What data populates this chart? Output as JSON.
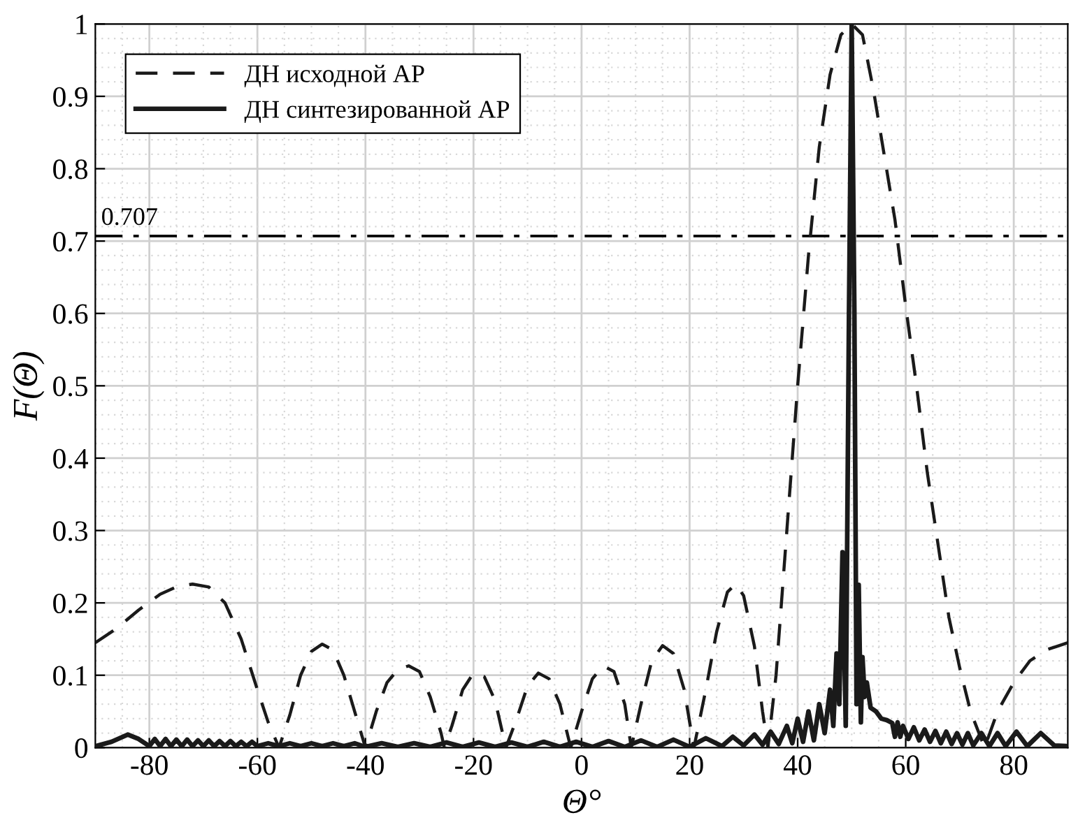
{
  "chart_data": {
    "type": "line",
    "xlabel": "Θ°",
    "ylabel": "F(Θ)",
    "xlim": [
      -90,
      90
    ],
    "xticks": [
      {
        "value": -80,
        "label": "-80"
      },
      {
        "value": -60,
        "label": "-60"
      },
      {
        "value": -40,
        "label": "-40"
      },
      {
        "value": -20,
        "label": "-20"
      },
      0,
      20,
      40,
      60,
      80
    ],
    "ylim": [
      0,
      1
    ],
    "yticks": [
      0,
      0.1,
      0.2,
      0.3,
      0.4,
      0.5,
      0.6,
      0.7,
      0.8,
      0.9,
      1
    ],
    "grid": true,
    "legend": "top left",
    "marker": "none",
    "ref_lines": [
      {
        "axis": "y",
        "value": 0.707,
        "label": "0.707",
        "color": "#000000",
        "line_style": "dashdot"
      }
    ],
    "series": [
      {
        "name": "ДН исходной АР",
        "color": "#1a1a1a",
        "line_style": "dashed",
        "x": [
          -90,
          -86,
          -82,
          -78,
          -75,
          -72,
          -69,
          -66,
          -63,
          -60,
          -58,
          -56,
          -54,
          -52,
          -50,
          -48,
          -46,
          -44,
          -42,
          -40,
          -38,
          -36,
          -34,
          -32,
          -30,
          -28,
          -26,
          -25.4,
          -24,
          -22,
          -20,
          -18,
          -16,
          -14,
          -12,
          -10,
          -8,
          -6,
          -4,
          -2,
          0,
          2,
          4,
          6,
          8,
          9.2,
          11,
          13,
          15,
          17,
          19,
          20.8,
          23,
          25,
          27,
          28.5,
          30,
          32,
          33.5,
          34.5,
          36,
          38,
          40,
          42,
          44,
          46,
          48,
          50,
          52,
          54,
          56,
          58,
          60,
          62,
          64,
          66,
          68,
          70,
          72,
          74.6,
          77,
          80,
          83,
          86,
          88,
          90
        ],
        "values": [
          0.145,
          0.165,
          0.19,
          0.212,
          0.222,
          0.226,
          0.222,
          0.2,
          0.15,
          0.08,
          0.035,
          0,
          0.045,
          0.1,
          0.133,
          0.143,
          0.135,
          0.1,
          0.05,
          0,
          0.05,
          0.09,
          0.108,
          0.113,
          0.105,
          0.07,
          0.02,
          0,
          0.03,
          0.08,
          0.103,
          0.098,
          0.065,
          0,
          0.04,
          0.085,
          0.103,
          0.095,
          0.06,
          0,
          0.05,
          0.095,
          0.113,
          0.105,
          0.06,
          0,
          0.06,
          0.12,
          0.141,
          0.13,
          0.08,
          0,
          0.08,
          0.16,
          0.215,
          0.226,
          0.21,
          0.14,
          0.05,
          0,
          0.1,
          0.3,
          0.5,
          0.68,
          0.83,
          0.93,
          0.985,
          1.0,
          0.985,
          0.91,
          0.82,
          0.73,
          0.61,
          0.5,
          0.38,
          0.28,
          0.18,
          0.11,
          0.05,
          0,
          0.05,
          0.09,
          0.12,
          0.135,
          0.14,
          0.145
        ]
      },
      {
        "name": "ДН синтезированной АР",
        "color": "#1a1a1a",
        "line_style": "solid",
        "x": [
          -90,
          -87,
          -84,
          -82,
          -80,
          -79,
          -78,
          -77,
          -76,
          -75,
          -74,
          -73,
          -72,
          -71,
          -70,
          -69,
          -68,
          -67,
          -66,
          -65,
          -64,
          -63,
          -62,
          -61,
          -60,
          -58,
          -56,
          -54,
          -52,
          -50,
          -48,
          -46,
          -44,
          -42,
          -40,
          -37,
          -34,
          -31,
          -28,
          -25,
          -22,
          -19,
          -16,
          -13,
          -10,
          -7,
          -4,
          -1,
          2,
          5,
          8,
          11,
          14,
          17,
          20,
          23,
          26,
          28,
          30,
          32,
          33.5,
          35,
          36.5,
          38,
          39,
          40,
          41,
          42,
          43,
          44,
          45,
          46,
          46.6,
          47.2,
          47.7,
          48.3,
          48.9,
          49.5,
          50,
          50.5,
          50.9,
          51.3,
          51.7,
          52,
          52.4,
          52.8,
          53.5,
          54.5,
          55.5,
          56.5,
          57.5,
          58,
          58.5,
          59,
          59.5,
          60.5,
          61.5,
          62.5,
          63.5,
          64.5,
          65.5,
          66.5,
          67.5,
          68.5,
          69.5,
          70.5,
          71.5,
          72.5,
          74,
          75.5,
          77,
          78.5,
          80.5,
          82.5,
          85,
          87.5,
          90
        ],
        "values": [
          0.002,
          0.008,
          0.018,
          0.012,
          0.002,
          0.012,
          0.002,
          0.012,
          0.002,
          0.011,
          0.002,
          0.011,
          0.002,
          0.01,
          0.002,
          0.01,
          0.002,
          0.009,
          0.002,
          0.009,
          0.002,
          0.008,
          0.002,
          0.008,
          0.002,
          0.006,
          0.002,
          0.006,
          0.002,
          0.006,
          0.002,
          0.006,
          0.002,
          0.006,
          0.001,
          0.006,
          0.001,
          0.006,
          0.001,
          0.007,
          0.001,
          0.007,
          0.001,
          0.007,
          0.001,
          0.008,
          0.001,
          0.008,
          0.001,
          0.009,
          0.001,
          0.01,
          0.001,
          0.011,
          0.001,
          0.013,
          0.002,
          0.015,
          0.003,
          0.018,
          0.004,
          0.022,
          0.005,
          0.03,
          0.006,
          0.04,
          0.008,
          0.05,
          0.01,
          0.06,
          0.02,
          0.08,
          0.03,
          0.13,
          0.06,
          0.27,
          0.03,
          0.6,
          1.0,
          0.6,
          0.06,
          0.225,
          0.035,
          0.125,
          0.07,
          0.09,
          0.055,
          0.05,
          0.04,
          0.038,
          0.034,
          0.015,
          0.035,
          0.015,
          0.03,
          0.012,
          0.028,
          0.01,
          0.025,
          0.008,
          0.023,
          0.006,
          0.022,
          0.005,
          0.02,
          0.004,
          0.02,
          0.003,
          0.02,
          0.002,
          0.02,
          0.002,
          0.022,
          0.002,
          0.02,
          0.003,
          0.002
        ]
      }
    ]
  }
}
